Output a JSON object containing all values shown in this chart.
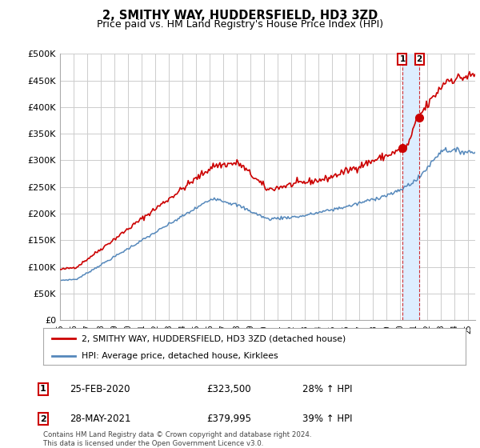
{
  "title": "2, SMITHY WAY, HUDDERSFIELD, HD3 3ZD",
  "subtitle": "Price paid vs. HM Land Registry's House Price Index (HPI)",
  "ylabel_ticks": [
    "£0",
    "£50K",
    "£100K",
    "£150K",
    "£200K",
    "£250K",
    "£300K",
    "£350K",
    "£400K",
    "£450K",
    "£500K"
  ],
  "ytick_vals": [
    0,
    50000,
    100000,
    150000,
    200000,
    250000,
    300000,
    350000,
    400000,
    450000,
    500000
  ],
  "ylim": [
    0,
    500000
  ],
  "xlim_start": 1995.0,
  "xlim_end": 2025.5,
  "legend_label_red": "2, SMITHY WAY, HUDDERSFIELD, HD3 3ZD (detached house)",
  "legend_label_blue": "HPI: Average price, detached house, Kirklees",
  "red_color": "#cc0000",
  "blue_color": "#5588bb",
  "shade_color": "#ddeeff",
  "sale1_date": "25-FEB-2020",
  "sale1_price": "£323,500",
  "sale1_hpi": "28% ↑ HPI",
  "sale1_x": 2020.15,
  "sale1_y": 323500,
  "sale2_date": "28-MAY-2021",
  "sale2_price": "£379,995",
  "sale2_hpi": "39% ↑ HPI",
  "sale2_x": 2021.4,
  "sale2_y": 379995,
  "footnote1": "Contains HM Land Registry data © Crown copyright and database right 2024.",
  "footnote2": "This data is licensed under the Open Government Licence v3.0.",
  "bg_color": "#ffffff",
  "grid_color": "#cccccc",
  "title_fontsize": 10.5,
  "subtitle_fontsize": 9
}
